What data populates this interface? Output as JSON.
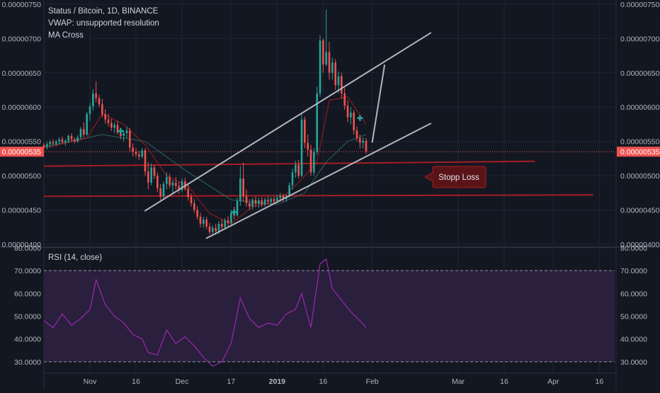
{
  "legend": {
    "symbol": "Status / Bitcoin, 1D, BINANCE",
    "vwap": "VWAP: unsupported resolution",
    "ma": "MA Cross"
  },
  "rsi_legend": "RSI (14, close)",
  "annotation": {
    "stop_loss": "Stopp Loss"
  },
  "price_tag": "0.00000535",
  "colors": {
    "background": "#131722",
    "up": "#26a69a",
    "down": "#ef5350",
    "grid": "#1f2533",
    "axis_text": "#b2b5be",
    "trendline": "#b2b5be",
    "support_line": "#a51d22",
    "rsi_line": "#9c27b0",
    "rsi_band": "#2a1f3d",
    "price_tag": "#ef5350"
  },
  "chart_data": [
    {
      "type": "candlestick",
      "price_axis": {
        "ticks": [
          "0.00000750",
          "0.00000700",
          "0.00000650",
          "0.00000600",
          "0.00000550",
          "0.00000500",
          "0.00000450",
          "0.00000400"
        ],
        "ylim": [
          3.98e-06,
          7.54e-06
        ]
      },
      "time_axis": {
        "ticks": [
          "Nov",
          "16",
          "Dec",
          "17",
          "2019",
          "16",
          "Feb",
          "Mar",
          "16",
          "Apr",
          "16"
        ],
        "range": [
          "2018-10-17",
          "2019-04-21"
        ]
      },
      "last_price": 5.35e-06,
      "ohlc": [
        [
          "2018-10-17",
          5.45e-06,
          5.48e-06,
          5.4e-06,
          5.42e-06
        ],
        [
          "2018-10-18",
          5.42e-06,
          5.5e-06,
          5.38e-06,
          5.46e-06
        ],
        [
          "2018-10-19",
          5.46e-06,
          5.52e-06,
          5.41e-06,
          5.49e-06
        ],
        [
          "2018-10-20",
          5.49e-06,
          5.53e-06,
          5.44e-06,
          5.47e-06
        ],
        [
          "2018-10-21",
          5.47e-06,
          5.52e-06,
          5.43e-06,
          5.5e-06
        ],
        [
          "2018-10-22",
          5.5e-06,
          5.56e-06,
          5.46e-06,
          5.53e-06
        ],
        [
          "2018-10-23",
          5.53e-06,
          5.57e-06,
          5.47e-06,
          5.49e-06
        ],
        [
          "2018-10-24",
          5.49e-06,
          5.53e-06,
          5.44e-06,
          5.51e-06
        ],
        [
          "2018-10-25",
          5.51e-06,
          5.6e-06,
          5.48e-06,
          5.58e-06
        ],
        [
          "2018-10-26",
          5.58e-06,
          5.62e-06,
          5.5e-06,
          5.53e-06
        ],
        [
          "2018-10-27",
          5.53e-06,
          5.56e-06,
          5.47e-06,
          5.5e-06
        ],
        [
          "2018-10-28",
          5.5e-06,
          5.59e-06,
          5.48e-06,
          5.56e-06
        ],
        [
          "2018-10-29",
          5.56e-06,
          5.71e-06,
          5.53e-06,
          5.68e-06
        ],
        [
          "2018-10-30",
          5.68e-06,
          5.78e-06,
          5.56e-06,
          5.6e-06
        ],
        [
          "2018-10-31",
          5.6e-06,
          5.93e-06,
          5.58e-06,
          5.9e-06
        ],
        [
          "2018-11-01",
          5.9e-06,
          6.06e-06,
          5.8e-06,
          6.01e-06
        ],
        [
          "2018-11-02",
          6.01e-06,
          6.26e-06,
          5.95e-06,
          6.2e-06
        ],
        [
          "2018-11-03",
          6.2e-06,
          6.38e-06,
          6.07e-06,
          6.13e-06
        ],
        [
          "2018-11-04",
          6.13e-06,
          6.18e-06,
          6e-06,
          6.04e-06
        ],
        [
          "2018-11-05",
          6.04e-06,
          6.12e-06,
          5.85e-06,
          5.9e-06
        ],
        [
          "2018-11-06",
          5.9e-06,
          5.97e-06,
          5.76e-06,
          5.82e-06
        ],
        [
          "2018-11-07",
          5.82e-06,
          5.9e-06,
          5.72e-06,
          5.77e-06
        ],
        [
          "2018-11-08",
          5.77e-06,
          5.83e-06,
          5.65e-06,
          5.7e-06
        ],
        [
          "2018-11-09",
          5.7e-06,
          5.78e-06,
          5.62e-06,
          5.74e-06
        ],
        [
          "2018-11-10",
          5.74e-06,
          5.8e-06,
          5.6e-06,
          5.63e-06
        ],
        [
          "2018-11-11",
          5.63e-06,
          5.7e-06,
          5.53e-06,
          5.58e-06
        ],
        [
          "2018-11-12",
          5.58e-06,
          5.66e-06,
          5.5e-06,
          5.62e-06
        ],
        [
          "2018-11-13",
          5.62e-06,
          5.72e-06,
          5.55e-06,
          5.66e-06
        ],
        [
          "2018-11-14",
          5.66e-06,
          5.7e-06,
          5.35e-06,
          5.41e-06
        ],
        [
          "2018-11-15",
          5.41e-06,
          5.47e-06,
          5.28e-06,
          5.35e-06
        ],
        [
          "2018-11-16",
          5.35e-06,
          5.4e-06,
          5.27e-06,
          5.31e-06
        ],
        [
          "2018-11-17",
          5.31e-06,
          5.36e-06,
          5.23e-06,
          5.28e-06
        ],
        [
          "2018-11-18",
          5.28e-06,
          5.4e-06,
          5.25e-06,
          5.37e-06
        ],
        [
          "2018-11-19",
          5.37e-06,
          5.4e-06,
          5e-06,
          5.06e-06
        ],
        [
          "2018-11-20",
          5.06e-06,
          5.2e-06,
          4.8e-06,
          4.9e-06
        ],
        [
          "2018-11-21",
          4.9e-06,
          5.18e-06,
          4.86e-06,
          5.12e-06
        ],
        [
          "2018-11-22",
          5.12e-06,
          5.16e-06,
          4.95e-06,
          5e-06
        ],
        [
          "2018-11-23",
          5e-06,
          5.05e-06,
          4.76e-06,
          4.82e-06
        ],
        [
          "2018-11-24",
          4.82e-06,
          4.88e-06,
          4.65e-06,
          4.7e-06
        ],
        [
          "2018-11-25",
          4.7e-06,
          4.92e-06,
          4.66e-06,
          4.88e-06
        ],
        [
          "2018-11-26",
          4.88e-06,
          5.05e-06,
          4.8e-06,
          4.98e-06
        ],
        [
          "2018-11-27",
          4.98e-06,
          5.03e-06,
          4.82e-06,
          4.86e-06
        ],
        [
          "2018-11-28",
          4.86e-06,
          4.94e-06,
          4.74e-06,
          4.9e-06
        ],
        [
          "2018-11-29",
          4.9e-06,
          4.98e-06,
          4.8e-06,
          4.85e-06
        ],
        [
          "2018-11-30",
          4.85e-06,
          4.91e-06,
          4.74e-06,
          4.79e-06
        ],
        [
          "2018-12-01",
          4.79e-06,
          4.96e-06,
          4.76e-06,
          4.92e-06
        ],
        [
          "2018-12-02",
          4.92e-06,
          4.97e-06,
          4.78e-06,
          4.81e-06
        ],
        [
          "2018-12-03",
          4.81e-06,
          4.87e-06,
          4.64e-06,
          4.69e-06
        ],
        [
          "2018-12-04",
          4.69e-06,
          4.74e-06,
          4.55e-06,
          4.6e-06
        ],
        [
          "2018-12-05",
          4.6e-06,
          4.66e-06,
          4.46e-06,
          4.5e-06
        ],
        [
          "2018-12-06",
          4.5e-06,
          4.56e-06,
          4.36e-06,
          4.4e-06
        ],
        [
          "2018-12-07",
          4.4e-06,
          4.46e-06,
          4.25e-06,
          4.3e-06
        ],
        [
          "2018-12-08",
          4.3e-06,
          4.4e-06,
          4.24e-06,
          4.36e-06
        ],
        [
          "2018-12-09",
          4.36e-06,
          4.4e-06,
          4.22e-06,
          4.26e-06
        ],
        [
          "2018-12-10",
          4.26e-06,
          4.31e-06,
          4.14e-06,
          4.18e-06
        ],
        [
          "2018-12-11",
          4.18e-06,
          4.28e-06,
          4.12e-06,
          4.24e-06
        ],
        [
          "2018-12-12",
          4.24e-06,
          4.3e-06,
          4.14e-06,
          4.19e-06
        ],
        [
          "2018-12-13",
          4.19e-06,
          4.34e-06,
          4.15e-06,
          4.3e-06
        ],
        [
          "2018-12-14",
          4.3e-06,
          4.37e-06,
          4.2e-06,
          4.25e-06
        ],
        [
          "2018-12-15",
          4.25e-06,
          4.38e-06,
          4.22e-06,
          4.35e-06
        ],
        [
          "2018-12-16",
          4.35e-06,
          4.41e-06,
          4.26e-06,
          4.31e-06
        ],
        [
          "2018-12-17",
          4.31e-06,
          4.5e-06,
          4.28e-06,
          4.46e-06
        ],
        [
          "2018-12-18",
          4.46e-06,
          4.55e-06,
          4.36e-06,
          4.42e-06
        ],
        [
          "2018-12-19",
          4.42e-06,
          4.68e-06,
          4.4e-06,
          4.63e-06
        ],
        [
          "2018-12-20",
          4.63e-06,
          5.14e-06,
          4.56e-06,
          4.96e-06
        ],
        [
          "2018-12-21",
          4.96e-06,
          5.19e-06,
          4.62e-06,
          4.7e-06
        ],
        [
          "2018-12-22",
          4.7e-06,
          4.8e-06,
          4.55e-06,
          4.6e-06
        ],
        [
          "2018-12-23",
          4.6e-06,
          4.66e-06,
          4.5e-06,
          4.55e-06
        ],
        [
          "2018-12-24",
          4.55e-06,
          4.68e-06,
          4.51e-06,
          4.65e-06
        ],
        [
          "2018-12-25",
          4.65e-06,
          4.7e-06,
          4.54e-06,
          4.59e-06
        ],
        [
          "2018-12-26",
          4.59e-06,
          4.68e-06,
          4.53e-06,
          4.64e-06
        ],
        [
          "2018-12-27",
          4.64e-06,
          4.69e-06,
          4.54e-06,
          4.58e-06
        ],
        [
          "2018-12-28",
          4.58e-06,
          4.68e-06,
          4.55e-06,
          4.65e-06
        ],
        [
          "2018-12-29",
          4.65e-06,
          4.7e-06,
          4.58e-06,
          4.62e-06
        ],
        [
          "2018-12-30",
          4.62e-06,
          4.69e-06,
          4.58e-06,
          4.66e-06
        ],
        [
          "2018-12-31",
          4.66e-06,
          4.7e-06,
          4.59e-06,
          4.63e-06
        ],
        [
          "2019-01-01",
          4.63e-06,
          4.72e-06,
          4.6e-06,
          4.68e-06
        ],
        [
          "2019-01-02",
          4.68e-06,
          4.75e-06,
          4.62e-06,
          4.71e-06
        ],
        [
          "2019-01-03",
          4.71e-06,
          4.74e-06,
          4.62e-06,
          4.66e-06
        ],
        [
          "2019-01-04",
          4.66e-06,
          4.73e-06,
          4.62e-06,
          4.7e-06
        ],
        [
          "2019-01-05",
          4.7e-06,
          4.9e-06,
          4.68e-06,
          4.86e-06
        ],
        [
          "2019-01-06",
          4.86e-06,
          5.1e-06,
          4.8e-06,
          5.05e-06
        ],
        [
          "2019-01-07",
          5.05e-06,
          5.22e-06,
          4.97e-06,
          5.16e-06
        ],
        [
          "2019-01-08",
          5.16e-06,
          5.23e-06,
          4.96e-06,
          5e-06
        ],
        [
          "2019-01-09",
          5e-06,
          5.9e-06,
          4.98e-06,
          5.82e-06
        ],
        [
          "2019-01-10",
          5.82e-06,
          5.86e-06,
          5.4e-06,
          5.48e-06
        ],
        [
          "2019-01-11",
          5.48e-06,
          5.6e-06,
          5.28e-06,
          5.38e-06
        ],
        [
          "2019-01-12",
          5.38e-06,
          5.45e-06,
          5e-06,
          5.05e-06
        ],
        [
          "2019-01-13",
          5.05e-06,
          5.4e-06,
          5e-06,
          5.35e-06
        ],
        [
          "2019-01-14",
          5.35e-06,
          6.3e-06,
          5.3e-06,
          6.2e-06
        ],
        [
          "2019-01-15",
          6.2e-06,
          7.05e-06,
          6.15e-06,
          6.97e-06
        ],
        [
          "2019-01-16",
          6.97e-06,
          7e-06,
          6.5e-06,
          6.62e-06
        ],
        [
          "2019-01-17",
          6.62e-06,
          7.42e-06,
          6.6e-06,
          6.8e-06
        ],
        [
          "2019-01-18",
          6.8e-06,
          6.95e-06,
          6.4e-06,
          6.5e-06
        ],
        [
          "2019-01-19",
          6.5e-06,
          6.72e-06,
          6.4e-06,
          6.65e-06
        ],
        [
          "2019-01-20",
          6.65e-06,
          6.7e-06,
          6.25e-06,
          6.32e-06
        ],
        [
          "2019-01-21",
          6.32e-06,
          6.52e-06,
          6.2e-06,
          6.45e-06
        ],
        [
          "2019-01-22",
          6.45e-06,
          6.5e-06,
          6.12e-06,
          6.2e-06
        ],
        [
          "2019-01-23",
          6.2e-06,
          6.28e-06,
          5.96e-06,
          6.02e-06
        ],
        [
          "2019-01-24",
          6.02e-06,
          6.1e-06,
          5.78e-06,
          5.85e-06
        ],
        [
          "2019-01-25",
          5.85e-06,
          6e-06,
          5.75e-06,
          5.92e-06
        ],
        [
          "2019-01-26",
          5.92e-06,
          5.96e-06,
          5.6e-06,
          5.66e-06
        ],
        [
          "2019-01-27",
          5.66e-06,
          5.72e-06,
          5.5e-06,
          5.55e-06
        ],
        [
          "2019-01-28",
          5.55e-06,
          5.6e-06,
          5.4e-06,
          5.48e-06
        ],
        [
          "2019-01-29",
          5.48e-06,
          5.56e-06,
          5.4e-06,
          5.51e-06
        ],
        [
          "2019-01-30",
          5.51e-06,
          5.55e-06,
          5.32e-06,
          5.36e-06
        ]
      ],
      "indicators": {
        "ma_fast": [
          [
            "2018-10-17",
            5.4e-06
          ],
          [
            "2018-10-31",
            5.55e-06
          ],
          [
            "2018-11-05",
            5.9e-06
          ],
          [
            "2018-11-12",
            5.75e-06
          ],
          [
            "2018-11-19",
            5.45e-06
          ],
          [
            "2018-11-26",
            5e-06
          ],
          [
            "2018-12-03",
            4.85e-06
          ],
          [
            "2018-12-10",
            4.45e-06
          ],
          [
            "2018-12-17",
            4.3e-06
          ],
          [
            "2018-12-24",
            4.55e-06
          ],
          [
            "2019-01-01",
            4.62e-06
          ],
          [
            "2019-01-08",
            4.9e-06
          ],
          [
            "2019-01-14",
            5.2e-06
          ],
          [
            "2019-01-18",
            6.1e-06
          ],
          [
            "2019-01-24",
            6.15e-06
          ],
          [
            "2019-01-30",
            5.75e-06
          ]
        ],
        "ma_slow": [
          [
            "2018-10-17",
            5.42e-06
          ],
          [
            "2018-11-05",
            5.6e-06
          ],
          [
            "2018-11-19",
            5.5e-06
          ],
          [
            "2018-12-03",
            5.05e-06
          ],
          [
            "2018-12-17",
            4.65e-06
          ],
          [
            "2019-01-01",
            4.58e-06
          ],
          [
            "2019-01-10",
            4.75e-06
          ],
          [
            "2019-01-17",
            5.2e-06
          ],
          [
            "2019-01-24",
            5.5e-06
          ],
          [
            "2019-01-30",
            5.6e-06
          ]
        ]
      },
      "cross_markers": [
        [
          "2018-11-11",
          5.65e-06
        ],
        [
          "2018-12-18",
          4.47e-06
        ],
        [
          "2019-01-28",
          5.84e-06
        ]
      ],
      "drawings": {
        "channel_upper": [
          [
            "2018-11-19",
            4.49e-06
          ],
          [
            "2019-02-20",
            7.08e-06
          ]
        ],
        "channel_lower": [
          [
            "2018-12-09",
            4.09e-06
          ],
          [
            "2019-02-20",
            5.76e-06
          ]
        ],
        "projection": [
          [
            "2019-02-01",
            5.49e-06
          ],
          [
            "2019-02-05",
            6.61e-06
          ]
        ],
        "support_upper": [
          [
            "2018-10-17",
            5.14e-06
          ],
          [
            "2019-03-26",
            5.21e-06
          ]
        ],
        "support_lower": [
          [
            "2018-10-17",
            4.7e-06
          ],
          [
            "2019-04-14",
            4.72e-06
          ]
        ]
      }
    },
    {
      "type": "line",
      "series": [
        {
          "name": "RSI (14, close)",
          "x": [
            "2018-10-17",
            "2018-10-20",
            "2018-10-23",
            "2018-10-26",
            "2018-10-29",
            "2018-11-01",
            "2018-11-03",
            "2018-11-06",
            "2018-11-09",
            "2018-11-12",
            "2018-11-15",
            "2018-11-18",
            "2018-11-20",
            "2018-11-23",
            "2018-11-26",
            "2018-11-29",
            "2018-12-02",
            "2018-12-05",
            "2018-12-08",
            "2018-12-11",
            "2018-12-14",
            "2018-12-17",
            "2018-12-20",
            "2018-12-23",
            "2018-12-26",
            "2018-12-29",
            "2019-01-01",
            "2019-01-04",
            "2019-01-07",
            "2019-01-09",
            "2019-01-12",
            "2019-01-15",
            "2019-01-17",
            "2019-01-19",
            "2019-01-22",
            "2019-01-25",
            "2019-01-28",
            "2019-01-30"
          ],
          "values": [
            48,
            45,
            51,
            46,
            49,
            53,
            66,
            55,
            50,
            47,
            42,
            40,
            34,
            33,
            44,
            38,
            41,
            37,
            32,
            28,
            30,
            38,
            58,
            49,
            45,
            47,
            46,
            51,
            53,
            60,
            45,
            73,
            75,
            62,
            57,
            52,
            48,
            45
          ]
        }
      ],
      "ylim": [
        25,
        80
      ],
      "yticks": [
        "80.0000",
        "70.0000",
        "60.0000",
        "50.0000",
        "40.0000",
        "30.0000"
      ],
      "band": [
        30,
        70
      ]
    }
  ]
}
